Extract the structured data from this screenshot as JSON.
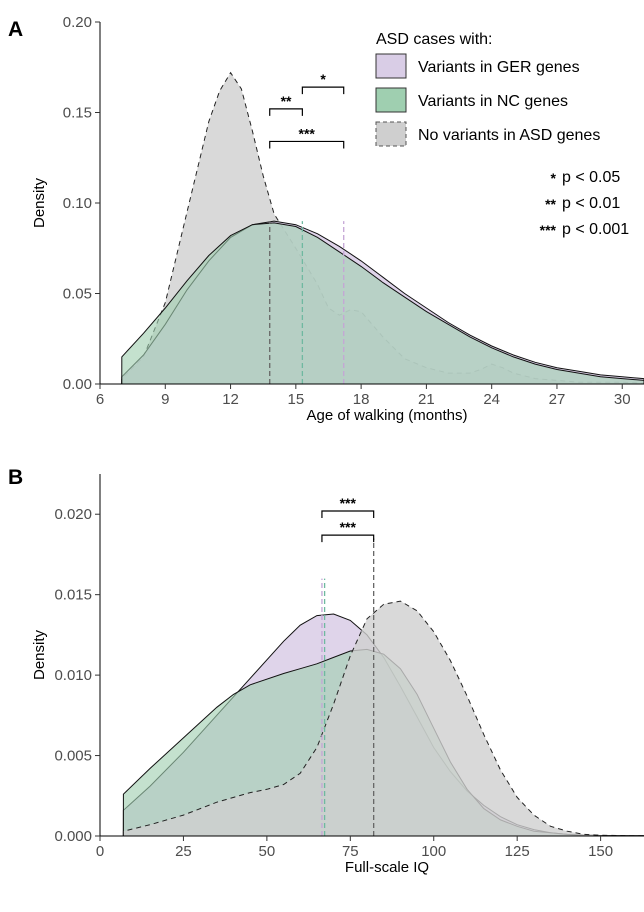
{
  "colors": {
    "ger_fill": "#d9cde6",
    "nc_fill": "#9fcfb0",
    "none_fill": "#cfcfcf",
    "ger_dash": "#c4a6d6",
    "nc_dash": "#6fb9a0",
    "none_dash": "#666666"
  },
  "legend": {
    "title": "ASD cases with:",
    "items": [
      {
        "key": "ger",
        "label": "Variants in GER genes"
      },
      {
        "key": "nc",
        "label": "Variants in NC genes"
      },
      {
        "key": "none",
        "label": "No variants in ASD genes"
      }
    ]
  },
  "sig_legend": [
    {
      "stars": "*",
      "label": "p < 0.05"
    },
    {
      "stars": "**",
      "label": "p < 0.01"
    },
    {
      "stars": "***",
      "label": "p < 0.001"
    }
  ],
  "chart_data": [
    {
      "panel": "A",
      "type": "area",
      "xlabel": "Age of walking (months)",
      "ylabel": "Density",
      "xlim": [
        6,
        31
      ],
      "ylim": [
        0,
        0.2
      ],
      "xticks": [
        6,
        9,
        12,
        15,
        18,
        21,
        24,
        27,
        30
      ],
      "yticks": [
        "0.00",
        "0.05",
        "0.10",
        "0.15",
        "0.20"
      ],
      "series": [
        {
          "key": "none",
          "x": [
            7,
            8,
            9,
            10,
            11,
            11.5,
            12,
            12.5,
            13,
            13.5,
            14,
            15,
            16,
            16.5,
            17,
            17.5,
            18,
            19,
            20,
            21,
            22,
            23,
            23.5,
            24,
            24.5,
            25,
            26,
            27,
            28,
            29,
            30,
            31
          ],
          "y": [
            0.003,
            0.015,
            0.045,
            0.095,
            0.145,
            0.162,
            0.172,
            0.163,
            0.14,
            0.115,
            0.094,
            0.075,
            0.055,
            0.042,
            0.038,
            0.041,
            0.04,
            0.026,
            0.014,
            0.009,
            0.006,
            0.006,
            0.008,
            0.011,
            0.009,
            0.006,
            0.003,
            0.002,
            0.001,
            0.001,
            0.001,
            0.0005
          ]
        },
        {
          "key": "ger",
          "x": [
            7,
            8,
            9,
            10,
            11,
            12,
            13,
            14,
            15,
            16,
            17,
            18,
            19,
            20,
            21,
            22,
            23,
            24,
            25,
            26,
            27,
            28,
            29,
            30,
            31
          ],
          "y": [
            0.004,
            0.016,
            0.033,
            0.052,
            0.068,
            0.081,
            0.088,
            0.09,
            0.088,
            0.083,
            0.076,
            0.068,
            0.059,
            0.05,
            0.042,
            0.034,
            0.027,
            0.021,
            0.016,
            0.012,
            0.009,
            0.007,
            0.005,
            0.004,
            0.003
          ]
        },
        {
          "key": "nc",
          "x": [
            7,
            8,
            9,
            10,
            11,
            12,
            13,
            14,
            15,
            16,
            17,
            18,
            19,
            20,
            21,
            22,
            23,
            24,
            25,
            26,
            27,
            28,
            29,
            30,
            31
          ],
          "y": [
            0.015,
            0.028,
            0.042,
            0.057,
            0.071,
            0.082,
            0.088,
            0.089,
            0.087,
            0.081,
            0.073,
            0.065,
            0.056,
            0.048,
            0.04,
            0.033,
            0.026,
            0.02,
            0.015,
            0.011,
            0.008,
            0.006,
            0.004,
            0.003,
            0.002
          ]
        }
      ],
      "medians": [
        {
          "key": "none",
          "x": 13.8,
          "y": 0.09
        },
        {
          "key": "nc",
          "x": 15.3,
          "y": 0.09
        },
        {
          "key": "ger",
          "x": 17.2,
          "y": 0.09
        }
      ],
      "brackets": [
        {
          "x1": 13.8,
          "x2": 15.3,
          "y": 0.152,
          "label": "**"
        },
        {
          "x1": 15.3,
          "x2": 17.2,
          "y": 0.164,
          "label": "*"
        },
        {
          "x1": 13.8,
          "x2": 17.2,
          "y": 0.134,
          "label": "***"
        }
      ]
    },
    {
      "panel": "B",
      "type": "area",
      "xlabel": "Full-scale IQ",
      "ylabel": "Density",
      "xlim": [
        0,
        163
      ],
      "ylim": [
        0,
        0.0225
      ],
      "xticks": [
        0,
        25,
        50,
        75,
        100,
        125,
        150
      ],
      "yticks": [
        "0.000",
        "0.005",
        "0.010",
        "0.015",
        "0.020"
      ],
      "series": [
        {
          "key": "none",
          "x": [
            7,
            15,
            25,
            35,
            45,
            50,
            55,
            60,
            65,
            70,
            75,
            80,
            85,
            90,
            95,
            100,
            105,
            110,
            115,
            120,
            125,
            130,
            135,
            140,
            145,
            150,
            155,
            160,
            163
          ],
          "y": [
            0.0003,
            0.0007,
            0.0013,
            0.0021,
            0.0027,
            0.0029,
            0.0032,
            0.0039,
            0.0055,
            0.0082,
            0.0112,
            0.0135,
            0.0144,
            0.0146,
            0.014,
            0.0127,
            0.0109,
            0.0087,
            0.0063,
            0.0041,
            0.0024,
            0.0013,
            0.0006,
            0.0003,
            0.0001,
            5e-05,
            3e-05,
            1e-05,
            1e-05
          ]
        },
        {
          "key": "ger",
          "x": [
            7,
            15,
            25,
            35,
            45,
            55,
            60,
            65,
            70,
            75,
            80,
            85,
            90,
            95,
            100,
            105,
            110,
            115,
            120,
            125,
            130,
            135,
            140,
            145,
            150,
            155,
            160,
            163
          ],
          "y": [
            0.0016,
            0.0031,
            0.0052,
            0.0075,
            0.0098,
            0.0121,
            0.0131,
            0.0137,
            0.0138,
            0.0134,
            0.0125,
            0.0111,
            0.0093,
            0.0074,
            0.0055,
            0.004,
            0.0028,
            0.0019,
            0.0012,
            0.0007,
            0.0004,
            0.0002,
            0.0001,
            5e-05,
            3e-05,
            1e-05,
            1e-05,
            1e-05
          ]
        },
        {
          "key": "nc",
          "x": [
            7,
            15,
            25,
            35,
            40,
            45,
            55,
            60,
            65,
            70,
            75,
            80,
            85,
            90,
            95,
            100,
            105,
            110,
            115,
            120,
            125,
            130,
            135,
            140,
            145,
            150,
            155,
            160,
            163
          ],
          "y": [
            0.0026,
            0.0042,
            0.0061,
            0.008,
            0.0088,
            0.0094,
            0.0101,
            0.0104,
            0.0107,
            0.0111,
            0.0115,
            0.0116,
            0.0113,
            0.0104,
            0.0088,
            0.0067,
            0.0046,
            0.0029,
            0.0017,
            0.001,
            0.0006,
            0.0003,
            0.0002,
            0.0001,
            5e-05,
            3e-05,
            1e-05,
            1e-05,
            1e-05
          ]
        }
      ],
      "medians": [
        {
          "key": "ger",
          "x": 66.5,
          "y": 0.016
        },
        {
          "key": "nc",
          "x": 67.3,
          "y": 0.016
        },
        {
          "key": "none",
          "x": 82,
          "y": 0.0185
        }
      ],
      "brackets": [
        {
          "x1": 66.5,
          "x2": 82,
          "y": 0.0202,
          "label": "***"
        },
        {
          "x1": 66.5,
          "x2": 82,
          "y": 0.0187,
          "label": "***"
        }
      ]
    }
  ]
}
